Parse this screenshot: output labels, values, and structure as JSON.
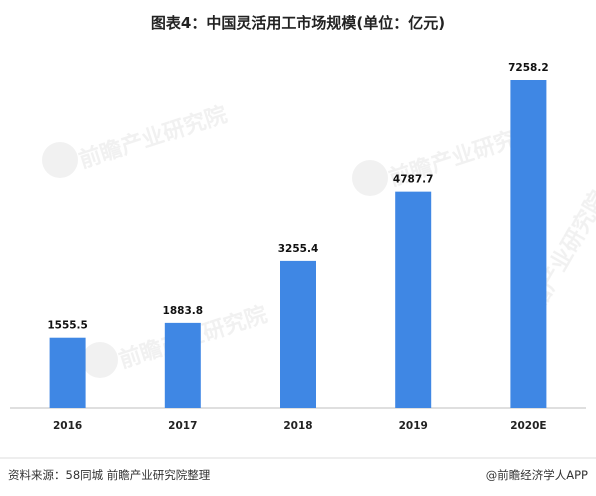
{
  "chart_data": {
    "type": "bar",
    "title": "图表4：中国灵活用工市场规模(单位：亿元)",
    "categories": [
      "2016",
      "2017",
      "2018",
      "2019",
      "2020E"
    ],
    "values": [
      1555.5,
      1883.8,
      3255.4,
      4787.7,
      7258.2
    ],
    "value_labels": [
      "1555.5",
      "1883.8",
      "3255.4",
      "4787.7",
      "7258.2"
    ],
    "xlabel": "",
    "ylabel": "",
    "ylim": [
      0,
      7258.2
    ],
    "grid": false,
    "legend": "none",
    "bar_color": "#3F87E4"
  },
  "footer": {
    "source": "资料来源：58同城 前瞻产业研究院整理",
    "brand": "@前瞻经济学人APP"
  },
  "watermark": {
    "text": "前瞻产业研究院"
  }
}
